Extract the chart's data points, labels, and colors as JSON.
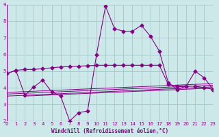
{
  "xlabel": "Windchill (Refroidissement éolien,°C)",
  "background_color": "#cce8e8",
  "grid_color": "#aacccc",
  "line_color": "#880088",
  "xlim": [
    0,
    23
  ],
  "ylim": [
    2,
    9
  ],
  "xticks": [
    0,
    1,
    2,
    3,
    4,
    5,
    6,
    7,
    8,
    9,
    10,
    11,
    12,
    13,
    14,
    15,
    16,
    17,
    18,
    19,
    20,
    21,
    22,
    23
  ],
  "yticks": [
    2,
    3,
    4,
    5,
    6,
    7,
    8,
    9
  ],
  "series1_x": [
    0,
    1,
    2,
    3,
    4,
    5,
    6,
    7,
    8,
    9,
    10,
    11,
    12,
    13,
    14,
    15,
    16,
    17,
    18,
    19,
    20,
    21,
    22,
    23
  ],
  "series1_y": [
    4.85,
    5.05,
    3.55,
    4.05,
    4.45,
    3.75,
    3.5,
    2.0,
    2.5,
    2.6,
    6.0,
    8.9,
    7.55,
    7.4,
    7.4,
    7.75,
    7.1,
    6.2,
    4.3,
    3.9,
    4.1,
    5.0,
    4.6,
    3.9
  ],
  "series2_x": [
    0,
    1,
    2,
    3,
    4,
    5,
    6,
    7,
    8,
    9,
    10,
    11,
    12,
    13,
    14,
    15,
    16,
    17,
    18,
    19,
    20,
    21,
    22,
    23
  ],
  "series2_y": [
    4.85,
    5.05,
    5.1,
    5.1,
    5.15,
    5.2,
    5.25,
    5.27,
    5.3,
    5.32,
    5.35,
    5.35,
    5.35,
    5.35,
    5.35,
    5.35,
    5.35,
    5.35,
    4.2,
    4.1,
    4.1,
    4.1,
    4.0,
    3.9
  ],
  "regline1_x": [
    0,
    23
  ],
  "regline1_y": [
    3.5,
    4.0
  ],
  "regline2_x": [
    2,
    23
  ],
  "regline2_y": [
    3.5,
    3.95
  ],
  "regline3_x": [
    0,
    23
  ],
  "regline3_y": [
    3.6,
    4.1
  ],
  "regline4_x": [
    0,
    23
  ],
  "regline4_y": [
    3.7,
    4.2
  ]
}
